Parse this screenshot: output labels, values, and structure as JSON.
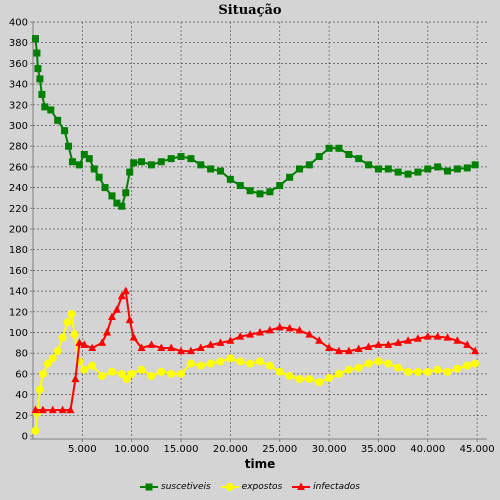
{
  "chart_data": {
    "type": "line",
    "title": "Situação",
    "xlabel": "time",
    "ylabel": "",
    "xlim": [
      0,
      46000
    ],
    "ylim": [
      0,
      400
    ],
    "x_ticks": [
      5000,
      10000,
      15000,
      20000,
      25000,
      30000,
      35000,
      40000,
      45000
    ],
    "x_tick_labels": [
      "5.000",
      "10.000",
      "15.000",
      "20.000",
      "25.000",
      "30.000",
      "35.000",
      "40.000",
      "45.000"
    ],
    "y_ticks": [
      0,
      20,
      40,
      60,
      80,
      100,
      120,
      140,
      160,
      180,
      200,
      220,
      240,
      260,
      280,
      300,
      320,
      340,
      360,
      380,
      400
    ],
    "grid": true,
    "legend_position": "bottom",
    "series": [
      {
        "name": "suscetiveis",
        "color": "#008000",
        "marker": "square",
        "points": [
          [
            250,
            384
          ],
          [
            400,
            370
          ],
          [
            500,
            355
          ],
          [
            700,
            345
          ],
          [
            900,
            330
          ],
          [
            1200,
            318
          ],
          [
            1800,
            315
          ],
          [
            2500,
            305
          ],
          [
            3200,
            295
          ],
          [
            3600,
            280
          ],
          [
            4000,
            265
          ],
          [
            4700,
            262
          ],
          [
            5200,
            272
          ],
          [
            5700,
            268
          ],
          [
            6200,
            258
          ],
          [
            6700,
            250
          ],
          [
            7300,
            240
          ],
          [
            8000,
            232
          ],
          [
            8500,
            225
          ],
          [
            9000,
            222
          ],
          [
            9400,
            235
          ],
          [
            9800,
            255
          ],
          [
            10200,
            264
          ],
          [
            11000,
            265
          ],
          [
            12000,
            262
          ],
          [
            13000,
            265
          ],
          [
            14000,
            268
          ],
          [
            15000,
            270
          ],
          [
            16000,
            268
          ],
          [
            17000,
            262
          ],
          [
            18000,
            258
          ],
          [
            19000,
            256
          ],
          [
            20000,
            248
          ],
          [
            21000,
            242
          ],
          [
            22000,
            237
          ],
          [
            23000,
            234
          ],
          [
            24000,
            236
          ],
          [
            25000,
            242
          ],
          [
            26000,
            250
          ],
          [
            27000,
            258
          ],
          [
            28000,
            262
          ],
          [
            29000,
            270
          ],
          [
            30000,
            278
          ],
          [
            31000,
            278
          ],
          [
            32000,
            272
          ],
          [
            33000,
            268
          ],
          [
            34000,
            262
          ],
          [
            35000,
            258
          ],
          [
            36000,
            258
          ],
          [
            37000,
            255
          ],
          [
            38000,
            253
          ],
          [
            39000,
            255
          ],
          [
            40000,
            258
          ],
          [
            41000,
            260
          ],
          [
            42000,
            256
          ],
          [
            43000,
            258
          ],
          [
            44000,
            259
          ],
          [
            44800,
            262
          ]
        ]
      },
      {
        "name": "expostos",
        "color": "#ffff00",
        "marker": "circle",
        "points": [
          [
            250,
            5
          ],
          [
            400,
            22
          ],
          [
            700,
            45
          ],
          [
            1000,
            60
          ],
          [
            1500,
            70
          ],
          [
            2000,
            75
          ],
          [
            2500,
            82
          ],
          [
            3000,
            95
          ],
          [
            3500,
            110
          ],
          [
            3900,
            118
          ],
          [
            4200,
            98
          ],
          [
            4700,
            72
          ],
          [
            5200,
            64
          ],
          [
            6000,
            68
          ],
          [
            7000,
            58
          ],
          [
            8000,
            62
          ],
          [
            9000,
            60
          ],
          [
            9500,
            55
          ],
          [
            10000,
            60
          ],
          [
            11000,
            64
          ],
          [
            12000,
            58
          ],
          [
            13000,
            62
          ],
          [
            14000,
            60
          ],
          [
            15000,
            60
          ],
          [
            16000,
            70
          ],
          [
            17000,
            68
          ],
          [
            18000,
            70
          ],
          [
            19000,
            72
          ],
          [
            20000,
            75
          ],
          [
            21000,
            72
          ],
          [
            22000,
            70
          ],
          [
            23000,
            72
          ],
          [
            24000,
            68
          ],
          [
            25000,
            62
          ],
          [
            26000,
            58
          ],
          [
            27000,
            55
          ],
          [
            28000,
            55
          ],
          [
            29000,
            52
          ],
          [
            30000,
            56
          ],
          [
            31000,
            60
          ],
          [
            32000,
            64
          ],
          [
            33000,
            66
          ],
          [
            34000,
            70
          ],
          [
            35000,
            72
          ],
          [
            36000,
            70
          ],
          [
            37000,
            66
          ],
          [
            38000,
            62
          ],
          [
            39000,
            62
          ],
          [
            40000,
            62
          ],
          [
            41000,
            64
          ],
          [
            42000,
            62
          ],
          [
            43000,
            65
          ],
          [
            44000,
            68
          ],
          [
            44800,
            70
          ]
        ]
      },
      {
        "name": "infectados",
        "color": "#ff0000",
        "marker": "triangle",
        "points": [
          [
            250,
            25
          ],
          [
            1000,
            25
          ],
          [
            2000,
            25
          ],
          [
            3000,
            25
          ],
          [
            3800,
            25
          ],
          [
            4300,
            55
          ],
          [
            4700,
            90
          ],
          [
            5200,
            88
          ],
          [
            6000,
            85
          ],
          [
            7000,
            90
          ],
          [
            7500,
            100
          ],
          [
            8000,
            115
          ],
          [
            8500,
            122
          ],
          [
            9000,
            135
          ],
          [
            9400,
            140
          ],
          [
            9800,
            112
          ],
          [
            10200,
            95
          ],
          [
            11000,
            85
          ],
          [
            12000,
            88
          ],
          [
            13000,
            85
          ],
          [
            14000,
            85
          ],
          [
            15000,
            82
          ],
          [
            16000,
            82
          ],
          [
            17000,
            85
          ],
          [
            18000,
            88
          ],
          [
            19000,
            90
          ],
          [
            20000,
            92
          ],
          [
            21000,
            96
          ],
          [
            22000,
            98
          ],
          [
            23000,
            100
          ],
          [
            24000,
            102
          ],
          [
            25000,
            105
          ],
          [
            26000,
            104
          ],
          [
            27000,
            102
          ],
          [
            28000,
            98
          ],
          [
            29000,
            92
          ],
          [
            30000,
            85
          ],
          [
            31000,
            82
          ],
          [
            32000,
            82
          ],
          [
            33000,
            84
          ],
          [
            34000,
            86
          ],
          [
            35000,
            88
          ],
          [
            36000,
            88
          ],
          [
            37000,
            90
          ],
          [
            38000,
            92
          ],
          [
            39000,
            94
          ],
          [
            40000,
            96
          ],
          [
            41000,
            96
          ],
          [
            42000,
            95
          ],
          [
            43000,
            92
          ],
          [
            44000,
            88
          ],
          [
            44800,
            82
          ]
        ]
      }
    ]
  }
}
